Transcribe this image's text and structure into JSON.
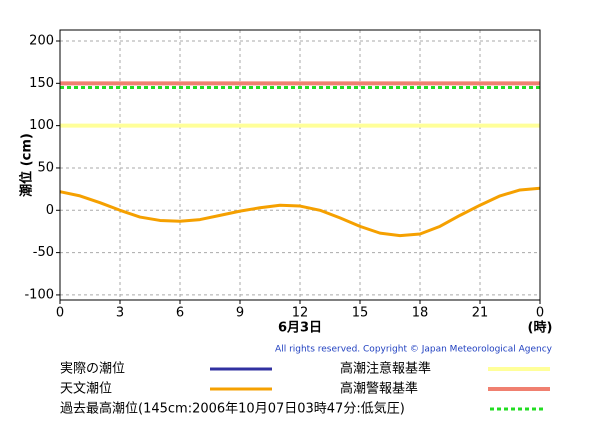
{
  "chart_data": {
    "type": "line",
    "y_label": "潮位 (cm)",
    "x_label": "6月3日",
    "x_unit": "(時)",
    "copyright": "All rights reserved. Copyright © Japan Meteorological Agency",
    "x": [
      0,
      1,
      2,
      3,
      4,
      5,
      6,
      7,
      8,
      9,
      10,
      11,
      12,
      13,
      14,
      15,
      16,
      17,
      18,
      19,
      20,
      21,
      22,
      23,
      24
    ],
    "series": [
      {
        "name": "実際の潮位",
        "color": "#3030a0",
        "values": [
          null,
          null,
          null,
          null,
          null,
          null,
          null,
          null,
          null,
          null,
          null,
          null,
          null,
          null,
          null,
          null,
          null,
          null,
          null,
          null,
          null,
          null,
          null,
          null,
          null
        ]
      },
      {
        "name": "天文潮位",
        "color": "#f5a000",
        "values": [
          22,
          17,
          9,
          0,
          -8,
          -12,
          -13,
          -11,
          -6,
          -1,
          3,
          6,
          5,
          0,
          -9,
          -19,
          -27,
          -30,
          -28,
          -19,
          -6,
          6,
          17,
          24,
          26
        ]
      }
    ],
    "reference_lines": [
      {
        "name": "高潮注意報基準",
        "value": 100,
        "color": "#ffff99",
        "style": "solid"
      },
      {
        "name": "高潮警報基準",
        "value": 150,
        "color": "#f08070",
        "style": "solid"
      },
      {
        "name": "過去最高潮位(145cm:2006年10月07日03時47分:低気圧)",
        "value": 145,
        "color": "#22dd22",
        "style": "dotted"
      }
    ],
    "xlim": [
      0,
      24
    ],
    "xticks": [
      0,
      3,
      6,
      9,
      12,
      15,
      18,
      21,
      {
        "value": 24,
        "label": "0"
      }
    ],
    "ylim": [
      -106,
      213
    ],
    "yticks": [
      -100,
      -50,
      0,
      50,
      100,
      150,
      200
    ],
    "grid": true
  }
}
